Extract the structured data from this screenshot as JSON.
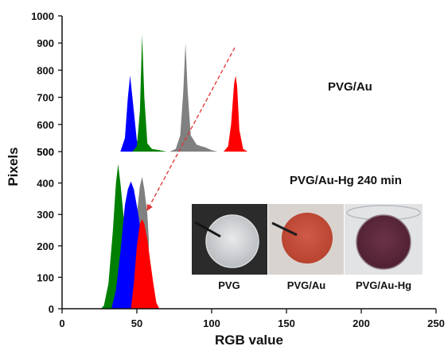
{
  "chart_data": {
    "type": "area",
    "xlabel": "RGB value",
    "ylabel": "Pixels",
    "xlim": [
      0,
      250
    ],
    "x_ticks": [
      "0",
      "50",
      "100",
      "150",
      "200",
      "250"
    ],
    "panels": [
      {
        "label": "PVG/Au",
        "ylim": [
          500,
          1000
        ],
        "y_ticks": [
          "500",
          "600",
          "700",
          "800",
          "900",
          "1000"
        ],
        "series": [
          {
            "color": "#0000ff",
            "points": [
              [
                39,
                500
              ],
              [
                42,
                550
              ],
              [
                44,
                700
              ],
              [
                45.5,
                780
              ],
              [
                47,
                700
              ],
              [
                50,
                540
              ],
              [
                53,
                515
              ],
              [
                58,
                505
              ],
              [
                62,
                500
              ]
            ]
          },
          {
            "color": "#008000",
            "points": [
              [
                47,
                500
              ],
              [
                50,
                520
              ],
              [
                52,
                650
              ],
              [
                53.5,
                930
              ],
              [
                55,
                700
              ],
              [
                57,
                530
              ],
              [
                60,
                510
              ],
              [
                65,
                505
              ],
              [
                70,
                500
              ]
            ]
          },
          {
            "color": "#808080",
            "points": [
              [
                72,
                500
              ],
              [
                76,
                510
              ],
              [
                79,
                560
              ],
              [
                81,
                720
              ],
              [
                82.5,
                900
              ],
              [
                84,
                720
              ],
              [
                86,
                560
              ],
              [
                90,
                525
              ],
              [
                96,
                515
              ],
              [
                100,
                505
              ],
              [
                104,
                500
              ]
            ]
          },
          {
            "color": "#ff0000",
            "points": [
              [
                108,
                500
              ],
              [
                111,
                520
              ],
              [
                113,
                600
              ],
              [
                115,
                750
              ],
              [
                116,
                780
              ],
              [
                117,
                740
              ],
              [
                118.5,
                580
              ],
              [
                121,
                510
              ],
              [
                124,
                500
              ]
            ]
          }
        ]
      },
      {
        "label": "PVG/Au-Hg 240 min",
        "ylim": [
          0,
          500
        ],
        "y_ticks": [
          "0",
          "100",
          "200",
          "300",
          "400",
          "500"
        ],
        "series": [
          {
            "color": "#008000",
            "points": [
              [
                26,
                0
              ],
              [
                28,
                10
              ],
              [
                31,
                80
              ],
              [
                34,
                250
              ],
              [
                36,
                400
              ],
              [
                37.5,
                460
              ],
              [
                39,
                400
              ],
              [
                41,
                300
              ],
              [
                43,
                180
              ],
              [
                45,
                80
              ],
              [
                47,
                20
              ],
              [
                49,
                0
              ]
            ]
          },
          {
            "color": "#808080",
            "points": [
              [
                47,
                280
              ],
              [
                50,
                300
              ],
              [
                52,
                390
              ],
              [
                53.5,
                420
              ],
              [
                55,
                380
              ],
              [
                57,
                300
              ],
              [
                58,
                220
              ]
            ]
          },
          {
            "color": "#0000ff",
            "points": [
              [
                33,
                0
              ],
              [
                36,
                60
              ],
              [
                39,
                180
              ],
              [
                42,
                330
              ],
              [
                44,
                380
              ],
              [
                46,
                405
              ],
              [
                48,
                380
              ],
              [
                51,
                300
              ],
              [
                54,
                200
              ],
              [
                57,
                100
              ],
              [
                59,
                30
              ],
              [
                61,
                0
              ]
            ]
          },
          {
            "color": "#ff0000",
            "points": [
              [
                46,
                0
              ],
              [
                48,
                80
              ],
              [
                50,
                200
              ],
              [
                52,
                270
              ],
              [
                53.5,
                285
              ],
              [
                55,
                270
              ],
              [
                57,
                220
              ],
              [
                59,
                150
              ],
              [
                61,
                80
              ],
              [
                63,
                20
              ],
              [
                65,
                0
              ]
            ]
          }
        ]
      }
    ],
    "arrow_color": "#e03030",
    "photo_captions": [
      "PVG",
      "PVG/Au",
      "PVG/Au-Hg"
    ]
  }
}
